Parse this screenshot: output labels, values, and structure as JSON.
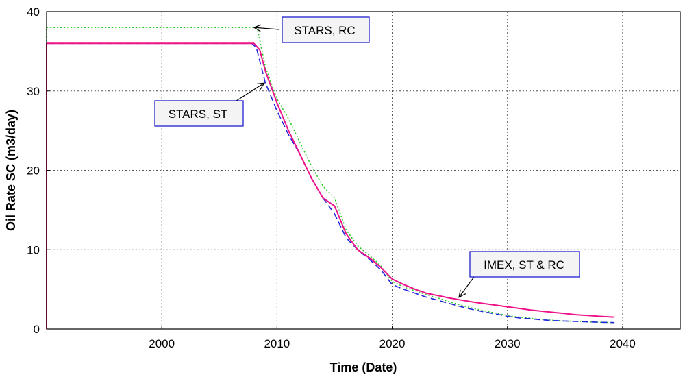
{
  "chart_data": {
    "type": "line",
    "xlabel": "Time (Date)",
    "ylabel": "Oil Rate SC (m3/day)",
    "xlim": [
      1990,
      2045
    ],
    "ylim": [
      0,
      40
    ],
    "x_ticks": [
      2000,
      2010,
      2020,
      2030,
      2040
    ],
    "y_ticks": [
      0,
      10,
      20,
      30,
      40
    ],
    "grid": true,
    "series": [
      {
        "name": "STARS, RC",
        "color": "#22cc22",
        "style": "dotted",
        "x": [
          1990,
          1990,
          1990.2,
          2007.9,
          2008.3,
          2009,
          2010,
          2011,
          2012,
          2013,
          2014,
          2015,
          2016,
          2017,
          2018,
          2019,
          2020,
          2021,
          2022,
          2023,
          2024,
          2025,
          2026,
          2027,
          2028,
          2029,
          2030,
          2031,
          2032,
          2033,
          2034,
          2035,
          2036,
          2037,
          2038,
          2039.3
        ],
        "y": [
          0,
          38,
          38,
          38,
          37.8,
          33,
          29,
          26.5,
          23.5,
          20.5,
          18,
          16.5,
          12.5,
          10.5,
          9.3,
          8,
          6,
          5.3,
          4.8,
          4.3,
          3.9,
          3.4,
          3.0,
          2.6,
          2.3,
          2.0,
          1.7,
          1.5,
          1.35,
          1.2,
          1.1,
          1.0,
          0.95,
          0.9,
          0.85,
          0.8
        ]
      },
      {
        "name": "STARS, ST",
        "color": "#2222dd",
        "style": "dashed",
        "x": [
          1990,
          1990,
          1990.2,
          2007.8,
          2008.2,
          2009,
          2010,
          2011,
          2012,
          2013,
          2014,
          2015,
          2016,
          2017,
          2018,
          2019,
          2020,
          2021,
          2022,
          2023,
          2024,
          2025,
          2026,
          2027,
          2028,
          2029,
          2030,
          2031,
          2032,
          2033,
          2034,
          2035,
          2036,
          2037,
          2038,
          2039.3
        ],
        "y": [
          0,
          36,
          36,
          36,
          35.5,
          31,
          27.5,
          24.5,
          22,
          19,
          16.5,
          14.5,
          11.5,
          10,
          8.8,
          7.5,
          5.6,
          5.0,
          4.5,
          4.0,
          3.6,
          3.2,
          2.8,
          2.45,
          2.15,
          1.9,
          1.6,
          1.4,
          1.3,
          1.15,
          1.05,
          1.0,
          0.95,
          0.9,
          0.85,
          0.8
        ]
      },
      {
        "name": "IMEX, ST & RC",
        "color": "#ee1188",
        "style": "solid",
        "x": [
          1990,
          1990,
          1990.2,
          2008,
          2008.5,
          2009,
          2010,
          2011,
          2012,
          2013,
          2014,
          2015,
          2016,
          2017,
          2018,
          2019,
          2020,
          2021,
          2022,
          2023,
          2024,
          2025,
          2026,
          2027,
          2028,
          2029,
          2030,
          2031,
          2032,
          2033,
          2034,
          2035,
          2036,
          2037,
          2038,
          2039.3
        ],
        "y": [
          0,
          36,
          36,
          36,
          35.2,
          32.5,
          28.5,
          25,
          22,
          19,
          16.5,
          15.5,
          12,
          10,
          9,
          7.8,
          6.3,
          5.6,
          5.0,
          4.5,
          4.2,
          3.9,
          3.65,
          3.4,
          3.2,
          3.0,
          2.8,
          2.6,
          2.4,
          2.25,
          2.1,
          1.95,
          1.8,
          1.7,
          1.6,
          1.5
        ]
      }
    ],
    "annotations": [
      {
        "text": "STARS, RC",
        "target": [
          2008,
          38
        ]
      },
      {
        "text": "STARS, ST",
        "target": [
          2008.9,
          31
        ]
      },
      {
        "text": "IMEX, ST & RC",
        "target": [
          2025.8,
          4
        ]
      }
    ]
  }
}
